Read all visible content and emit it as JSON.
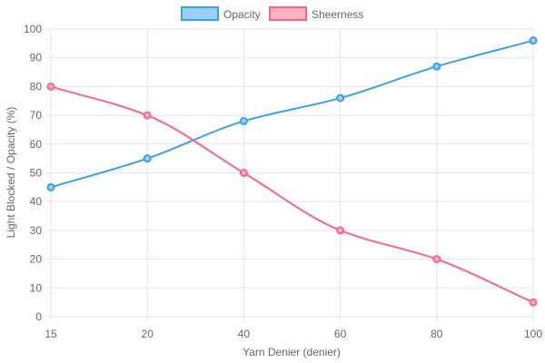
{
  "chart_data": {
    "type": "line",
    "categories": [
      "15",
      "20",
      "40",
      "60",
      "80",
      "100"
    ],
    "xlabel": "Yarn Denier (denier)",
    "ylabel": "Light Blocked / Opacity (%)",
    "ylim": [
      0,
      100
    ],
    "yticks": [
      "0",
      "10",
      "20",
      "30",
      "40",
      "50",
      "60",
      "70",
      "80",
      "90",
      "100"
    ],
    "grid": true,
    "legend_position": "top",
    "series": [
      {
        "name": "Opacity",
        "values": [
          45,
          55,
          68,
          76,
          87,
          96
        ],
        "color": "#36a2eb",
        "fill": "#9ad0f5"
      },
      {
        "name": "Sheerness",
        "values": [
          80,
          70,
          50,
          30,
          20,
          5
        ],
        "color": "#ff6384",
        "fill": "#ffb1c1"
      }
    ]
  }
}
